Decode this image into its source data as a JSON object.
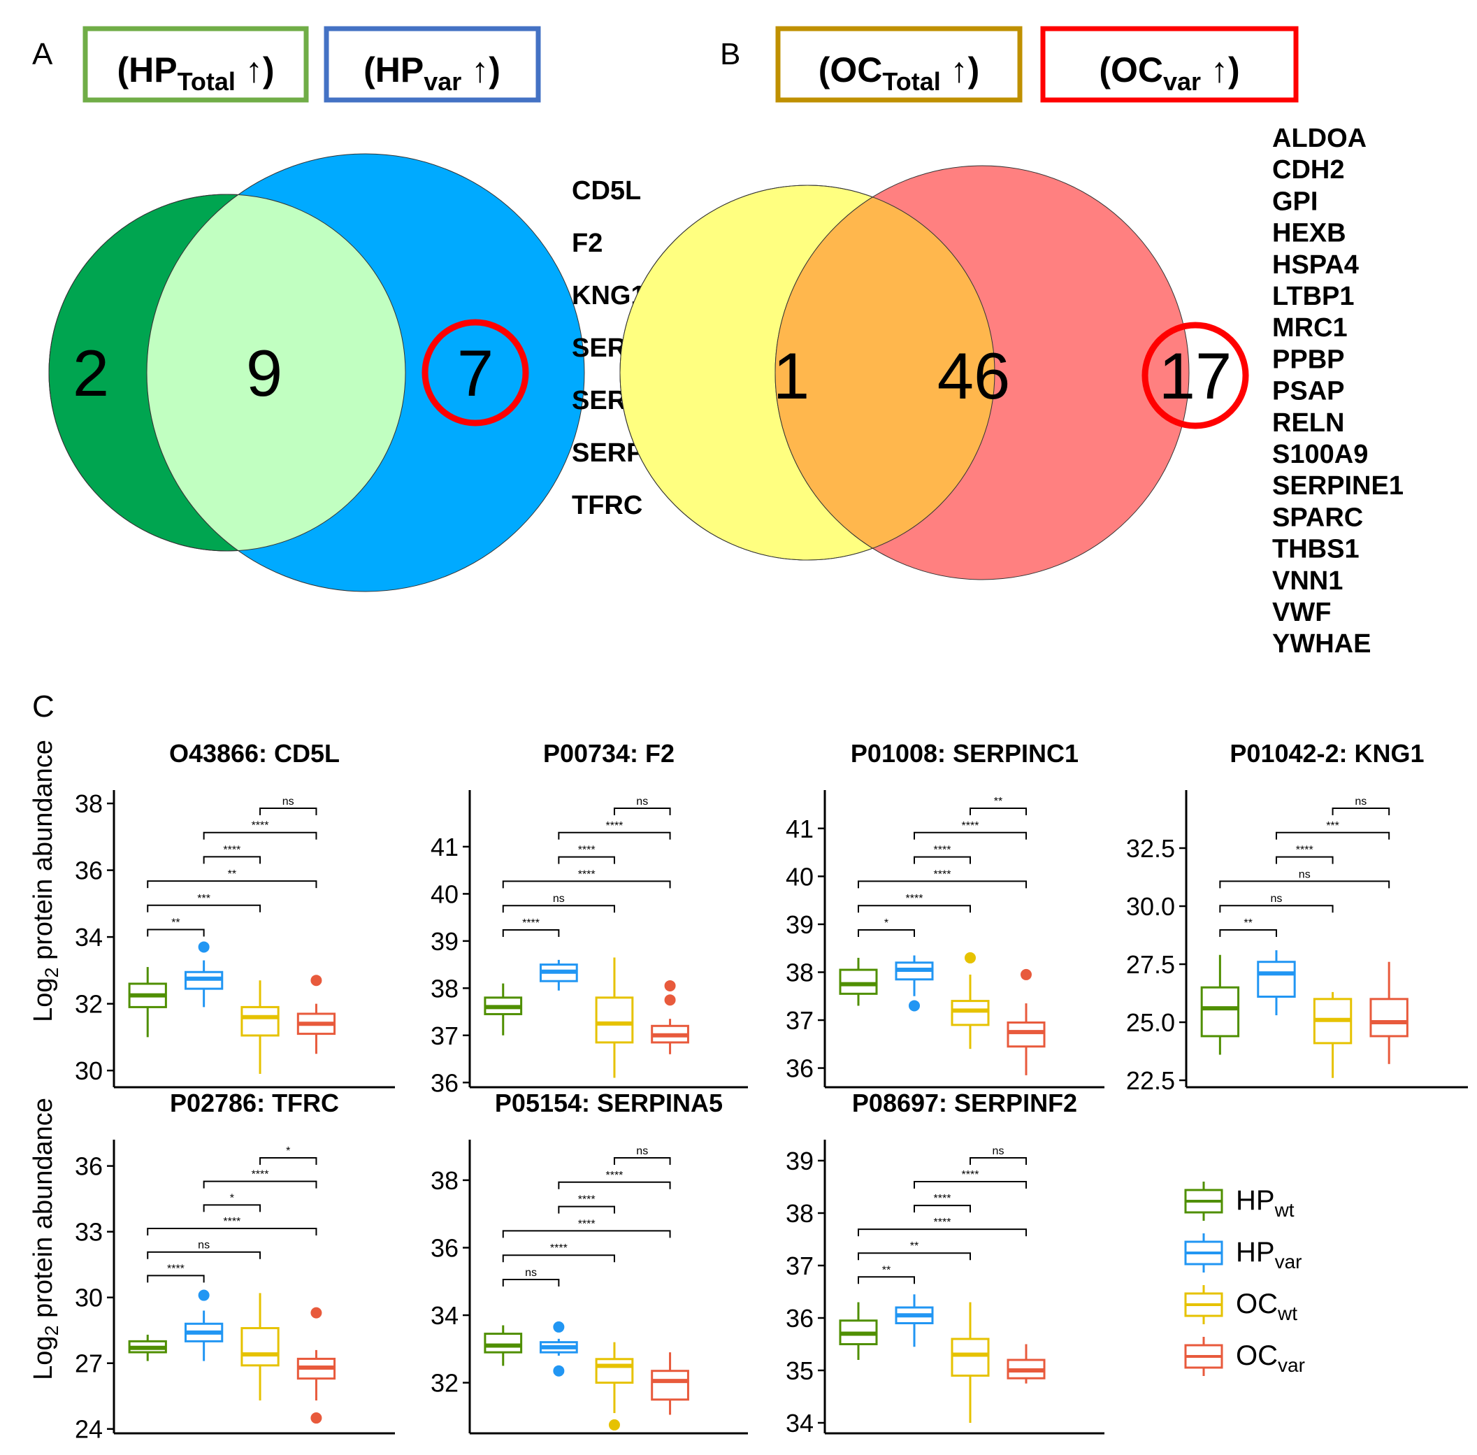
{
  "panel_letters": {
    "a": "A",
    "b": "B",
    "c": "C"
  },
  "venn_a": {
    "label_left": {
      "main": "(HP",
      "sub": "Total",
      "tail": " ↑)"
    },
    "label_right": {
      "main": "(HP",
      "sub": "var",
      "tail": " ↑)"
    },
    "counts": {
      "only_left": "2",
      "both": "9",
      "only_right": "7"
    },
    "gene_list": [
      "CD5L",
      "F2",
      "KNG1",
      "SERPINA5",
      "SERPINC1",
      "SERPINF2",
      "TFRC"
    ]
  },
  "venn_b": {
    "label_left": {
      "main": "(OC",
      "sub": "Total",
      "tail": " ↑)"
    },
    "label_right": {
      "main": "(OC",
      "sub": "var",
      "tail": " ↑)"
    },
    "counts": {
      "only_left": "1",
      "both": "46",
      "only_right": "17"
    },
    "gene_list": [
      "ALDOA",
      "CDH2",
      "GPI",
      "HEXB",
      "HSPA4",
      "LTBP1",
      "MRC1",
      "PPBP",
      "PSAP",
      "RELN",
      "S100A9",
      "SERPINE1",
      "SPARC",
      "THBS1",
      "VNN1",
      "VWF",
      "YWHAE"
    ]
  },
  "colors": {
    "hp_total_box": "#70ad47",
    "hp_var_box": "#4472c4",
    "oc_total_box": "#bf9000",
    "oc_var_box": "#ff0000",
    "venn_a_left": "#00a550",
    "venn_a_overlap": "#c1ffc1",
    "venn_a_right": "#00aaff",
    "venn_b_left": "#ffff80",
    "venn_b_overlap": "#ffb74d",
    "venn_b_right": "#ff8080",
    "highlight_ring": "#ff0000",
    "hp_wt": "#4f8f00",
    "hp_var": "#2196f3",
    "oc_wt": "#e6c200",
    "oc_var": "#e85a3c"
  },
  "y_axis_label": {
    "main": "Log",
    "sub": "2",
    "tail": " protein abundance"
  },
  "legend": [
    {
      "main": "HP",
      "sub": "wt",
      "color": "#4f8f00"
    },
    {
      "main": "HP",
      "sub": "var",
      "color": "#2196f3"
    },
    {
      "main": "OC",
      "sub": "wt",
      "color": "#e6c200"
    },
    {
      "main": "OC",
      "sub": "var",
      "color": "#e85a3c"
    }
  ],
  "chart_data": [
    {
      "type": "box",
      "title": "O43866: CD5L",
      "categories": [
        "HPwt",
        "HPvar",
        "OCwt",
        "OCvar"
      ],
      "ylim": [
        29.5,
        38.4
      ],
      "yticks": [
        30,
        32,
        34,
        36,
        38
      ],
      "ytick_labels": [
        "30",
        "32",
        "34",
        "36",
        "38"
      ],
      "boxes": [
        {
          "min": 31.0,
          "q1": 31.9,
          "median": 32.25,
          "q3": 32.6,
          "max": 33.1,
          "outliers": []
        },
        {
          "min": 31.9,
          "q1": 32.45,
          "median": 32.75,
          "q3": 32.95,
          "max": 33.3,
          "outliers": [
            33.7
          ]
        },
        {
          "min": 29.9,
          "q1": 31.05,
          "median": 31.6,
          "q3": 31.9,
          "max": 32.7,
          "outliers": []
        },
        {
          "min": 30.5,
          "q1": 31.1,
          "median": 31.4,
          "q3": 31.7,
          "max": 32.0,
          "outliers": [
            32.7
          ]
        }
      ],
      "brackets": [
        {
          "a": 0,
          "b": 1,
          "label": "**"
        },
        {
          "a": 0,
          "b": 2,
          "label": "***"
        },
        {
          "a": 0,
          "b": 3,
          "label": "**"
        },
        {
          "a": 1,
          "b": 2,
          "label": "****"
        },
        {
          "a": 1,
          "b": 3,
          "label": "****"
        },
        {
          "a": 2,
          "b": 3,
          "label": "ns"
        }
      ]
    },
    {
      "type": "box",
      "title": "P00734: F2",
      "categories": [
        "HPwt",
        "HPvar",
        "OCwt",
        "OCvar"
      ],
      "ylim": [
        35.9,
        42.2
      ],
      "yticks": [
        36,
        37,
        38,
        39,
        40,
        41
      ],
      "ytick_labels": [
        "36",
        "37",
        "38",
        "39",
        "40",
        "41"
      ],
      "boxes": [
        {
          "min": 37.0,
          "q1": 37.45,
          "median": 37.6,
          "q3": 37.8,
          "max": 38.1,
          "outliers": []
        },
        {
          "min": 37.95,
          "q1": 38.15,
          "median": 38.35,
          "q3": 38.5,
          "max": 38.6,
          "outliers": []
        },
        {
          "min": 36.1,
          "q1": 36.85,
          "median": 37.25,
          "q3": 37.8,
          "max": 38.65,
          "outliers": []
        },
        {
          "min": 36.6,
          "q1": 36.85,
          "median": 37.0,
          "q3": 37.2,
          "max": 37.35,
          "outliers": [
            37.75,
            38.05
          ]
        }
      ],
      "brackets": [
        {
          "a": 0,
          "b": 1,
          "label": "****"
        },
        {
          "a": 0,
          "b": 2,
          "label": "ns"
        },
        {
          "a": 0,
          "b": 3,
          "label": "****"
        },
        {
          "a": 1,
          "b": 2,
          "label": "****"
        },
        {
          "a": 1,
          "b": 3,
          "label": "****"
        },
        {
          "a": 2,
          "b": 3,
          "label": "ns"
        }
      ]
    },
    {
      "type": "box",
      "title": "P01008: SERPINC1",
      "categories": [
        "HPwt",
        "HPvar",
        "OCwt",
        "OCvar"
      ],
      "ylim": [
        35.6,
        41.8
      ],
      "yticks": [
        36,
        37,
        38,
        39,
        40,
        41
      ],
      "ytick_labels": [
        "36",
        "37",
        "38",
        "39",
        "40",
        "41"
      ],
      "boxes": [
        {
          "min": 37.3,
          "q1": 37.55,
          "median": 37.75,
          "q3": 38.05,
          "max": 38.3,
          "outliers": []
        },
        {
          "min": 37.5,
          "q1": 37.85,
          "median": 38.05,
          "q3": 38.2,
          "max": 38.35,
          "outliers": [
            37.3
          ]
        },
        {
          "min": 36.4,
          "q1": 36.9,
          "median": 37.2,
          "q3": 37.4,
          "max": 37.95,
          "outliers": [
            38.3
          ]
        },
        {
          "min": 35.85,
          "q1": 36.45,
          "median": 36.75,
          "q3": 36.95,
          "max": 37.35,
          "outliers": [
            37.95
          ]
        }
      ],
      "brackets": [
        {
          "a": 0,
          "b": 1,
          "label": "*"
        },
        {
          "a": 0,
          "b": 2,
          "label": "****"
        },
        {
          "a": 0,
          "b": 3,
          "label": "****"
        },
        {
          "a": 1,
          "b": 2,
          "label": "****"
        },
        {
          "a": 1,
          "b": 3,
          "label": "****"
        },
        {
          "a": 2,
          "b": 3,
          "label": "**"
        }
      ]
    },
    {
      "type": "box",
      "title": "P01042-2: KNG1",
      "categories": [
        "HPwt",
        "HPvar",
        "OCwt",
        "OCvar"
      ],
      "ylim": [
        22.2,
        35.0
      ],
      "yticks": [
        22.5,
        25,
        27.5,
        30,
        32.5
      ],
      "ytick_labels": [
        "22.5",
        "25.0",
        "27.5",
        "30.0",
        "32.5"
      ],
      "boxes": [
        {
          "min": 23.6,
          "q1": 24.4,
          "median": 25.6,
          "q3": 26.5,
          "max": 27.9,
          "outliers": []
        },
        {
          "min": 25.3,
          "q1": 26.1,
          "median": 27.1,
          "q3": 27.6,
          "max": 28.1,
          "outliers": []
        },
        {
          "min": 22.6,
          "q1": 24.1,
          "median": 25.1,
          "q3": 26.0,
          "max": 26.3,
          "outliers": []
        },
        {
          "min": 23.2,
          "q1": 24.4,
          "median": 25.0,
          "q3": 26.0,
          "max": 27.6,
          "outliers": []
        }
      ],
      "brackets": [
        {
          "a": 0,
          "b": 1,
          "label": "**"
        },
        {
          "a": 0,
          "b": 2,
          "label": "ns"
        },
        {
          "a": 0,
          "b": 3,
          "label": "ns"
        },
        {
          "a": 1,
          "b": 2,
          "label": "****"
        },
        {
          "a": 1,
          "b": 3,
          "label": "***"
        },
        {
          "a": 2,
          "b": 3,
          "label": "ns"
        }
      ]
    },
    {
      "type": "box",
      "title": "P02786: TFRC",
      "categories": [
        "HPwt",
        "HPvar",
        "OCwt",
        "OCvar"
      ],
      "ylim": [
        23.8,
        37.2
      ],
      "yticks": [
        24,
        27,
        30,
        33,
        36
      ],
      "ytick_labels": [
        "24",
        "27",
        "30",
        "33",
        "36"
      ],
      "boxes": [
        {
          "min": 27.1,
          "q1": 27.5,
          "median": 27.7,
          "q3": 28.0,
          "max": 28.3,
          "outliers": []
        },
        {
          "min": 27.1,
          "q1": 28.0,
          "median": 28.4,
          "q3": 28.8,
          "max": 29.4,
          "outliers": [
            30.1
          ]
        },
        {
          "min": 25.3,
          "q1": 26.9,
          "median": 27.4,
          "q3": 28.6,
          "max": 30.2,
          "outliers": []
        },
        {
          "min": 25.3,
          "q1": 26.3,
          "median": 26.8,
          "q3": 27.2,
          "max": 27.6,
          "outliers": [
            29.3,
            24.5
          ]
        }
      ],
      "brackets": [
        {
          "a": 0,
          "b": 1,
          "label": "****"
        },
        {
          "a": 0,
          "b": 2,
          "label": "ns"
        },
        {
          "a": 0,
          "b": 3,
          "label": "****"
        },
        {
          "a": 1,
          "b": 2,
          "label": "*"
        },
        {
          "a": 1,
          "b": 3,
          "label": "****"
        },
        {
          "a": 2,
          "b": 3,
          "label": "*"
        }
      ]
    },
    {
      "type": "box",
      "title": "P05154: SERPINA5",
      "categories": [
        "HPwt",
        "HPvar",
        "OCwt",
        "OCvar"
      ],
      "ylim": [
        30.5,
        39.2
      ],
      "yticks": [
        32,
        34,
        36,
        38
      ],
      "ytick_labels": [
        "32",
        "34",
        "36",
        "38"
      ],
      "boxes": [
        {
          "min": 32.5,
          "q1": 32.9,
          "median": 33.1,
          "q3": 33.45,
          "max": 33.7,
          "outliers": []
        },
        {
          "min": 32.8,
          "q1": 32.9,
          "median": 33.05,
          "q3": 33.2,
          "max": 33.3,
          "outliers": [
            33.65,
            32.35
          ]
        },
        {
          "min": 31.1,
          "q1": 32.0,
          "median": 32.5,
          "q3": 32.7,
          "max": 33.2,
          "outliers": [
            30.75
          ]
        },
        {
          "min": 31.05,
          "q1": 31.5,
          "median": 32.05,
          "q3": 32.35,
          "max": 32.9,
          "outliers": []
        }
      ],
      "brackets": [
        {
          "a": 0,
          "b": 1,
          "label": "ns"
        },
        {
          "a": 0,
          "b": 2,
          "label": "****"
        },
        {
          "a": 0,
          "b": 3,
          "label": "****"
        },
        {
          "a": 1,
          "b": 2,
          "label": "****"
        },
        {
          "a": 1,
          "b": 3,
          "label": "****"
        },
        {
          "a": 2,
          "b": 3,
          "label": "ns"
        }
      ]
    },
    {
      "type": "box",
      "title": "P08697: SERPINF2",
      "categories": [
        "HPwt",
        "HPvar",
        "OCwt",
        "OCvar"
      ],
      "ylim": [
        33.8,
        39.4
      ],
      "yticks": [
        34,
        35,
        36,
        37,
        38,
        39
      ],
      "ytick_labels": [
        "34",
        "35",
        "36",
        "37",
        "38",
        "39"
      ],
      "boxes": [
        {
          "min": 35.2,
          "q1": 35.5,
          "median": 35.7,
          "q3": 35.95,
          "max": 36.3,
          "outliers": []
        },
        {
          "min": 35.45,
          "q1": 35.9,
          "median": 36.05,
          "q3": 36.2,
          "max": 36.45,
          "outliers": []
        },
        {
          "min": 34.0,
          "q1": 34.9,
          "median": 35.3,
          "q3": 35.6,
          "max": 36.3,
          "outliers": []
        },
        {
          "min": 34.75,
          "q1": 34.85,
          "median": 35.0,
          "q3": 35.2,
          "max": 35.5,
          "outliers": []
        }
      ],
      "brackets": [
        {
          "a": 0,
          "b": 1,
          "label": "**"
        },
        {
          "a": 0,
          "b": 2,
          "label": "**"
        },
        {
          "a": 0,
          "b": 3,
          "label": "****"
        },
        {
          "a": 1,
          "b": 2,
          "label": "****"
        },
        {
          "a": 1,
          "b": 3,
          "label": "****"
        },
        {
          "a": 2,
          "b": 3,
          "label": "ns"
        }
      ]
    }
  ]
}
